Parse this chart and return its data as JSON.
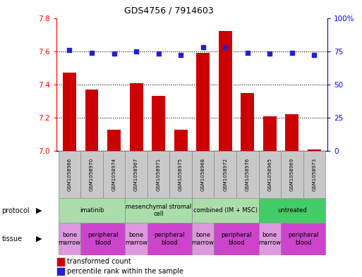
{
  "title": "GDS4756 / 7914603",
  "samples": [
    "GSM1058966",
    "GSM1058970",
    "GSM1058974",
    "GSM1058967",
    "GSM1058971",
    "GSM1058975",
    "GSM1058968",
    "GSM1058972",
    "GSM1058976",
    "GSM1058965",
    "GSM1058969",
    "GSM1058973"
  ],
  "transformed_counts": [
    7.47,
    7.37,
    7.13,
    7.41,
    7.33,
    7.13,
    7.59,
    7.72,
    7.35,
    7.21,
    7.22,
    7.01
  ],
  "percentile_ranks": [
    76,
    74,
    73,
    75,
    73,
    72,
    78,
    78,
    74,
    73,
    74,
    72
  ],
  "ylim_left": [
    7.0,
    7.8
  ],
  "ylim_right": [
    0,
    100
  ],
  "yticks_left": [
    7.0,
    7.2,
    7.4,
    7.6,
    7.8
  ],
  "yticks_right": [
    0,
    25,
    50,
    75,
    100
  ],
  "ytick_right_labels": [
    "0",
    "25",
    "50",
    "75",
    "100%"
  ],
  "bar_color": "#cc0000",
  "dot_color": "#2222cc",
  "protocol_groups": [
    {
      "label": "imatinib",
      "start": 0,
      "end": 3,
      "color": "#aaddaa"
    },
    {
      "label": "mesenchymal stromal\ncell",
      "start": 3,
      "end": 6,
      "color": "#aaddaa"
    },
    {
      "label": "combined (IM + MSC)",
      "start": 6,
      "end": 9,
      "color": "#aaddaa"
    },
    {
      "label": "untreated",
      "start": 9,
      "end": 12,
      "color": "#44cc66"
    }
  ],
  "tissue_groups": [
    {
      "label": "bone\nmarrow",
      "start": 0,
      "end": 1,
      "color": "#dd99dd"
    },
    {
      "label": "peripheral\nblood",
      "start": 1,
      "end": 3,
      "color": "#cc44cc"
    },
    {
      "label": "bone\nmarrow",
      "start": 3,
      "end": 4,
      "color": "#dd99dd"
    },
    {
      "label": "peripheral\nblood",
      "start": 4,
      "end": 6,
      "color": "#cc44cc"
    },
    {
      "label": "bone\nmarrow",
      "start": 6,
      "end": 7,
      "color": "#dd99dd"
    },
    {
      "label": "peripheral\nblood",
      "start": 7,
      "end": 9,
      "color": "#cc44cc"
    },
    {
      "label": "bone\nmarrow",
      "start": 9,
      "end": 10,
      "color": "#dd99dd"
    },
    {
      "label": "peripheral\nblood",
      "start": 10,
      "end": 12,
      "color": "#cc44cc"
    }
  ],
  "legend_bar_label": "transformed count",
  "legend_dot_label": "percentile rank within the sample",
  "bar_color_legend": "#cc0000",
  "dot_color_legend": "#2222cc"
}
